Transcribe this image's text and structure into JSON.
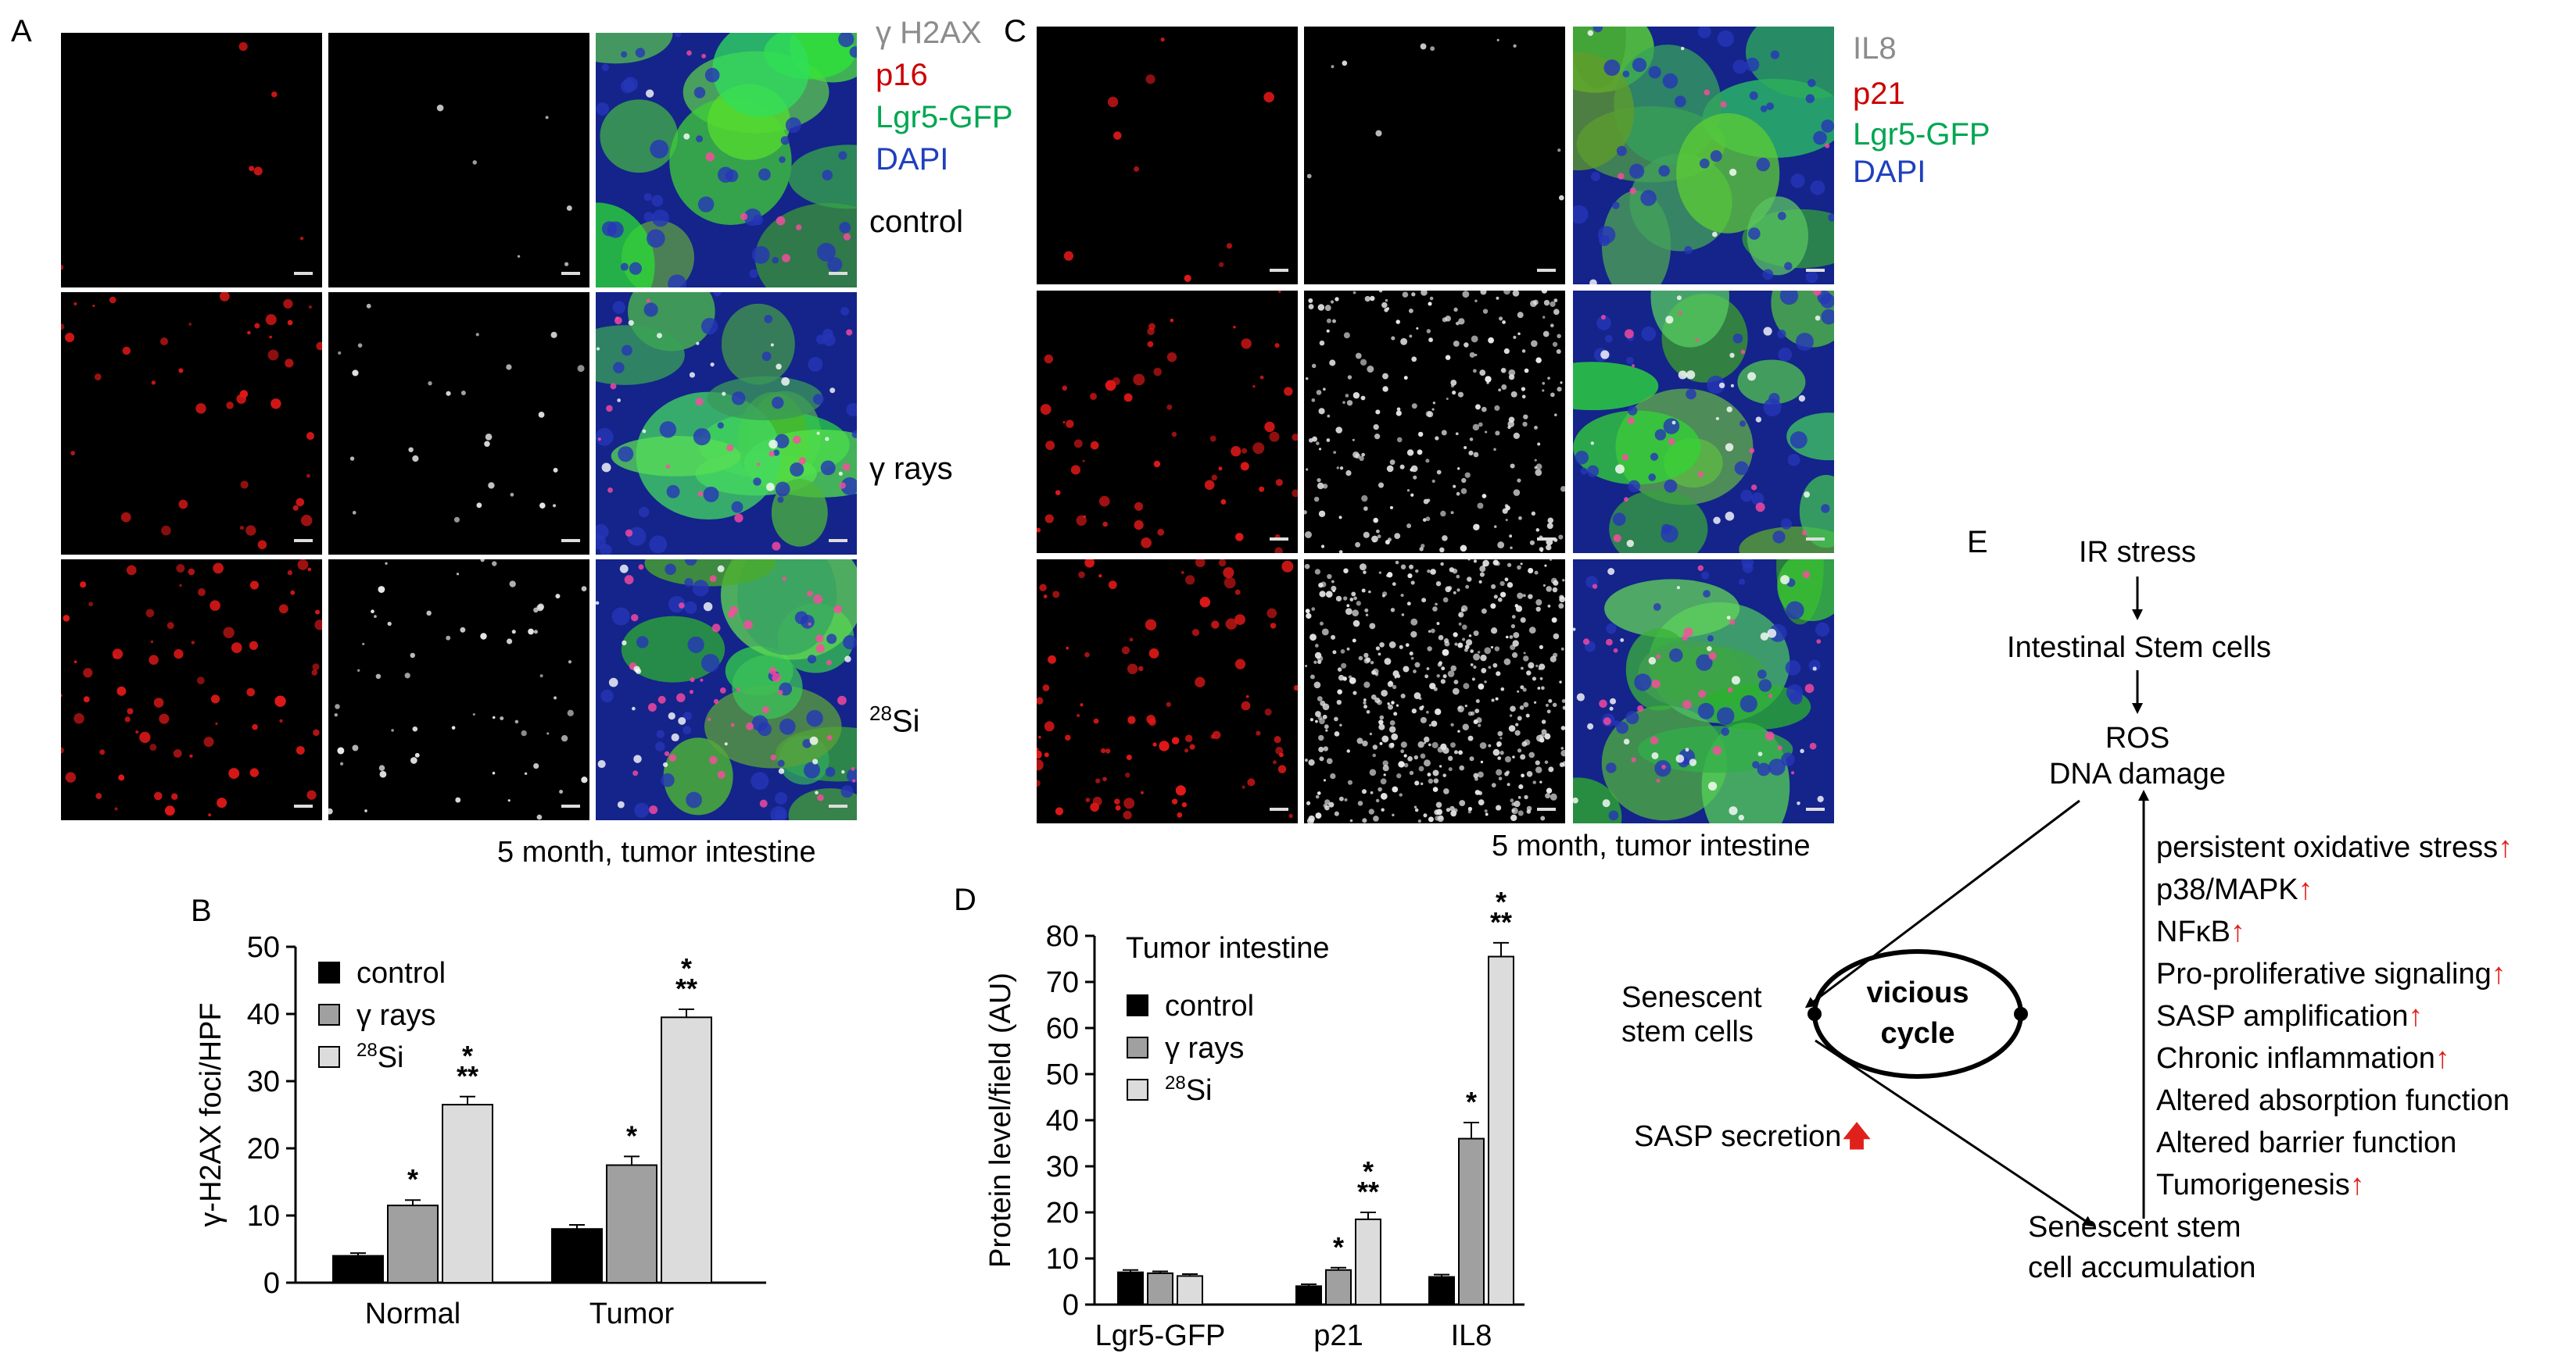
{
  "panel_a": {
    "letter": "A",
    "legend": [
      {
        "text": "γ H2AX",
        "color": "#8c8c8c"
      },
      {
        "text": "p16",
        "color": "#cc0000"
      },
      {
        "text": "Lgr5-GFP",
        "color": "#00a651"
      },
      {
        "text": "DAPI",
        "color": "#1f3fbf"
      }
    ],
    "row_labels": [
      "control",
      "γ rays",
      "28Si"
    ],
    "row_label_sup": {
      "text": "28",
      "base": "Si"
    },
    "caption": "5 month, tumor intestine"
  },
  "panel_c": {
    "letter": "C",
    "legend": [
      {
        "text": "IL8",
        "color": "#8c8c8c"
      },
      {
        "text": "p21",
        "color": "#cc0000"
      },
      {
        "text": "Lgr5-GFP",
        "color": "#00a651"
      },
      {
        "text": "DAPI",
        "color": "#1f3fbf"
      }
    ],
    "caption": "5 month, tumor intestine"
  },
  "panel_b": {
    "letter": "B",
    "legend": [
      "control",
      "γ rays",
      "Si"
    ],
    "legend_sup": "28",
    "chart_data": {
      "type": "bar",
      "categories": [
        "Normal",
        "Tumor"
      ],
      "series": [
        {
          "name": "control",
          "values": [
            4,
            8
          ],
          "errors": [
            0.4,
            0.6
          ],
          "color": "#000000"
        },
        {
          "name": "γ rays",
          "values": [
            11.5,
            17.5
          ],
          "errors": [
            0.8,
            1.3
          ],
          "color": "#a0a0a0"
        },
        {
          "name": "28Si",
          "values": [
            26.5,
            39.5
          ],
          "errors": [
            1.2,
            1.2
          ],
          "color": "#dcdcdc"
        }
      ],
      "ylabel": "γ-H2AX foci/HPF",
      "ylim": [
        0,
        50
      ],
      "yticks": [
        0,
        10,
        20,
        30,
        40,
        50
      ],
      "significance": [
        [
          "",
          "*",
          "*\n**"
        ],
        [
          "",
          "*",
          "*\n**"
        ]
      ],
      "legend_position": "top-left"
    }
  },
  "panel_d": {
    "letter": "D",
    "title": "Tumor intestine",
    "legend": [
      "control",
      "γ rays",
      "Si"
    ],
    "legend_sup": "28",
    "chart_data": {
      "type": "bar",
      "categories": [
        "Lgr5-GFP",
        "p21",
        "IL8"
      ],
      "series": [
        {
          "name": "control",
          "values": [
            7,
            4,
            6
          ],
          "errors": [
            0.5,
            0.4,
            0.5
          ],
          "color": "#000000"
        },
        {
          "name": "γ rays",
          "values": [
            6.8,
            7.5,
            36
          ],
          "errors": [
            0.4,
            0.5,
            3.5
          ],
          "color": "#a0a0a0"
        },
        {
          "name": "28Si",
          "values": [
            6.2,
            18.5,
            75.5
          ],
          "errors": [
            0.4,
            1.5,
            3.0
          ],
          "color": "#dcdcdc"
        }
      ],
      "title": "Tumor intestine",
      "ylabel": "Protein level/field (AU)",
      "ylim": [
        0,
        80
      ],
      "yticks": [
        0,
        10,
        20,
        30,
        40,
        50,
        60,
        70,
        80
      ],
      "significance": [
        [
          "",
          "",
          ""
        ],
        [
          "",
          "*",
          "*\n**"
        ],
        [
          "",
          "*",
          "*\n**"
        ]
      ],
      "legend_position": "left"
    }
  },
  "panel_e": {
    "letter": "E",
    "ir_stress": "IR stress",
    "stem_cells": "Intestinal Stem cells",
    "ros": "ROS",
    "dna_damage": "DNA damage",
    "senescent_1": "Senescent",
    "senescent_2": "stem cells",
    "sasp_secretion": "SASP secretion",
    "vicious_1": "vicious",
    "vicious_2": "cycle",
    "accum_1": "Senescent stem",
    "accum_2": "cell accumulation",
    "effects": [
      {
        "text": "persistent oxidative stress",
        "up": true
      },
      {
        "text": "p38/MAPK",
        "up": true
      },
      {
        "text": "NFκB",
        "up": true
      },
      {
        "text": "Pro-proliferative signaling",
        "up": true
      },
      {
        "text": "SASP amplification",
        "up": true
      },
      {
        "text": "Chronic inflammation",
        "up": true
      },
      {
        "text": "Altered absorption function",
        "up": false
      },
      {
        "text": "Altered barrier function",
        "up": false
      },
      {
        "text": "Tumorigenesis",
        "up": true
      }
    ],
    "arrow_color": "#e0201b"
  }
}
